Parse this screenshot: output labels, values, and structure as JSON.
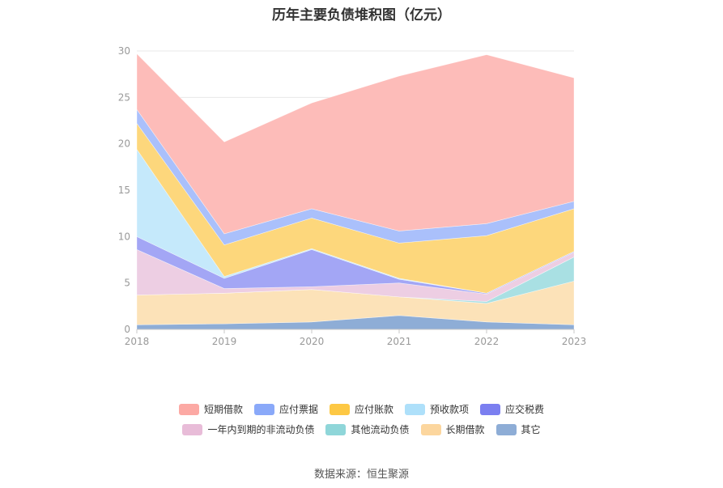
{
  "title": "历年主要负债堆积图（亿元）",
  "source_label": "数据来源：恒生聚源",
  "chart_data": {
    "type": "area",
    "stacked": true,
    "title": "历年主要负债堆积图（亿元）",
    "x": [
      "2018",
      "2019",
      "2020",
      "2021",
      "2022",
      "2023"
    ],
    "ylim": [
      0,
      30
    ],
    "yticks": [
      "0",
      "5",
      "10",
      "15",
      "20",
      "25",
      "30"
    ],
    "grid": true,
    "legend_position": "bottom",
    "series": [
      {
        "name": "其它",
        "color": "#8eadd6",
        "values": [
          0.5,
          0.6,
          0.8,
          1.5,
          0.8,
          0.5
        ]
      },
      {
        "name": "长期借款",
        "color": "#fce2b8",
        "values": [
          3.2,
          3.3,
          3.5,
          2.0,
          2.0,
          4.7
        ]
      },
      {
        "name": "其他流动负债",
        "color": "#a9e0e3",
        "values": [
          0.0,
          0.0,
          0.0,
          0.0,
          0.2,
          2.6
        ]
      },
      {
        "name": "一年内到期的非流动负债",
        "color": "#edcee3",
        "values": [
          4.9,
          0.5,
          0.3,
          1.5,
          0.8,
          0.5
        ]
      },
      {
        "name": "应交税费",
        "color": "#a3a6f5",
        "values": [
          1.4,
          1.1,
          4.0,
          0.4,
          0.1,
          0.1
        ]
      },
      {
        "name": "预收款项",
        "color": "#c5e9fb",
        "values": [
          9.4,
          0.2,
          0.1,
          0.1,
          0.0,
          0.0
        ]
      },
      {
        "name": "应付账款",
        "color": "#fdd77c",
        "values": [
          2.8,
          3.4,
          3.3,
          3.8,
          6.2,
          4.6
        ]
      },
      {
        "name": "应付票据",
        "color": "#aac0fb",
        "values": [
          1.5,
          1.2,
          1.0,
          1.3,
          1.3,
          0.8
        ]
      },
      {
        "name": "短期借款",
        "color": "#fdbcb9",
        "values": [
          6.0,
          9.9,
          11.4,
          16.7,
          18.2,
          13.3
        ]
      }
    ]
  },
  "legend": {
    "row1": [
      {
        "label": "短期借款",
        "color": "#fca9a4"
      },
      {
        "label": "应付票据",
        "color": "#8aa9f9"
      },
      {
        "label": "应付账款",
        "color": "#fdc844"
      },
      {
        "label": "预收款项",
        "color": "#aee0fa"
      },
      {
        "label": "应交税费",
        "color": "#7b7ff0"
      }
    ],
    "row2": [
      {
        "label": "一年内到期的非流动负债",
        "color": "#e8bcd8"
      },
      {
        "label": "其他流动负债",
        "color": "#8fd6d9"
      },
      {
        "label": "长期借款",
        "color": "#fcd69e"
      },
      {
        "label": "其它",
        "color": "#8eadd6"
      }
    ]
  }
}
